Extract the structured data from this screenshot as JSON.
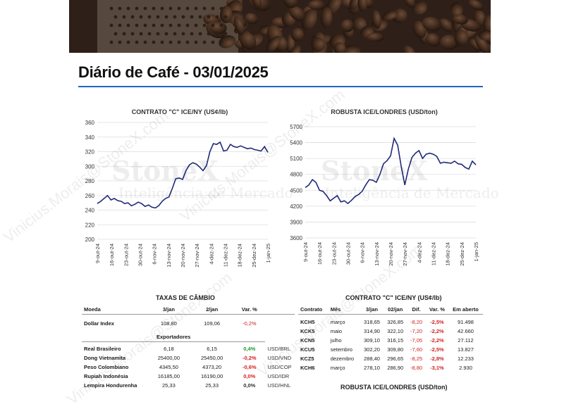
{
  "header": {
    "title": "Diário de Café - 03/01/2025"
  },
  "watermark": {
    "brand": "StoneX",
    "tagline": "Inteligência de Mercado",
    "email": "Vinicius.Morais@StoneX.com"
  },
  "colors": {
    "accent": "#1e66c9",
    "series": "#1f2a78",
    "positive": "#1a9a2a",
    "negative": "#d21f1f"
  },
  "chart_data": [
    {
      "type": "line",
      "title": "CONTRATO \"C\" ICE/NY (US¢/lb)",
      "ylim": [
        200,
        360
      ],
      "yticks": [
        200,
        220,
        240,
        260,
        280,
        300,
        320,
        340,
        360
      ],
      "xticks": [
        "9-out-24",
        "16-out-24",
        "23-out-24",
        "30-out-24",
        "6-nov-24",
        "13-nov-24",
        "20-nov-24",
        "27-nov-24",
        "4-dez-24",
        "11-dez-24",
        "18-dez-24",
        "25-dez-24",
        "1-jan-25"
      ],
      "grid": true,
      "values": [
        249,
        252,
        256,
        260,
        254,
        256,
        253,
        252,
        249,
        250,
        246,
        248,
        251,
        249,
        245,
        247,
        244,
        243,
        246,
        252,
        256,
        258,
        270,
        283,
        284,
        282,
        294,
        302,
        305,
        303,
        299,
        294,
        301,
        320,
        331,
        330,
        333,
        321,
        322,
        330,
        327,
        326,
        328,
        326,
        324,
        325,
        323,
        322,
        321,
        327,
        319
      ]
    },
    {
      "type": "line",
      "title": "ROBUSTA ICE/LONDRES (USD/ton)",
      "ylim": [
        3600,
        5700
      ],
      "yticks": [
        3600,
        3900,
        4200,
        4500,
        4800,
        5100,
        5400,
        5700
      ],
      "xticks": [
        "9-out-24",
        "16-out-24",
        "23-out-24",
        "30-out-24",
        "6-nov-24",
        "13-nov-24",
        "20-nov-24",
        "27-nov-24",
        "4-dez-24",
        "11-dez-24",
        "18-dez-24",
        "25-dez-24",
        "1-jan-25"
      ],
      "grid": true,
      "values": [
        4550,
        4600,
        4700,
        4650,
        4500,
        4480,
        4400,
        4300,
        4350,
        4400,
        4280,
        4300,
        4250,
        4310,
        4380,
        4420,
        4480,
        4600,
        4700,
        4690,
        4650,
        4800,
        5000,
        5060,
        5150,
        5480,
        5350,
        4950,
        4600,
        4900,
        5120,
        5200,
        5250,
        5100,
        5180,
        5200,
        5180,
        5140,
        5010,
        5030,
        5020,
        5010,
        5050,
        5000,
        4990,
        4930,
        4900,
        5050,
        4980
      ]
    }
  ],
  "fx": {
    "title": "TAXAS DE CÂMBIO",
    "headers": [
      "Moeda",
      "3/jan",
      "2/jan",
      "Var. %"
    ],
    "index_row": {
      "name": "Dollar Index",
      "v1": "108,80",
      "v2": "109,06",
      "var": "-0,2%",
      "sign": "negative"
    },
    "exporters_label": "Exportadores",
    "rows": [
      {
        "name": "Real Brasileiro",
        "v1": "6,18",
        "v2": "6,15",
        "var": "0,4%",
        "pair": "USD/BRL",
        "sign": "positive"
      },
      {
        "name": "Dong Vietnamita",
        "v1": "25400,00",
        "v2": "25450,00",
        "var": "-0,2%",
        "pair": "USD/VND",
        "sign": "negative"
      },
      {
        "name": "Peso Colombiano",
        "v1": "4345,50",
        "v2": "4373,20",
        "var": "-0,6%",
        "pair": "USD/COP",
        "sign": "negative"
      },
      {
        "name": "Rupiah Indonésia",
        "v1": "16185,00",
        "v2": "16190,00",
        "var": "0,0%",
        "pair": "USD/IDR",
        "sign": "negative"
      },
      {
        "name": "Lempira Hondurenha",
        "v1": "25,33",
        "v2": "25,33",
        "var": "0,0%",
        "pair": "USD/HNL",
        "sign": "neutral"
      }
    ]
  },
  "contracts": {
    "title": "CONTRATO \"C\" ICE/NY (US¢/lb)",
    "headers": [
      "Contrato",
      "Mês",
      "3/jan",
      "02/jan",
      "Dif.",
      "Var. %",
      "Em aberto"
    ],
    "rows": [
      {
        "code": "KCH5",
        "month": "março",
        "v1": "318,65",
        "v2": "326,85",
        "dif": "-8,20",
        "var": "-2,5%",
        "open": "91.498"
      },
      {
        "code": "KCK5",
        "month": "maio",
        "v1": "314,90",
        "v2": "322,10",
        "dif": "-7,20",
        "var": "-2,2%",
        "open": "42.660"
      },
      {
        "code": "KCN5",
        "month": "julho",
        "v1": "309,10",
        "v2": "316,15",
        "dif": "-7,05",
        "var": "-2,2%",
        "open": "27.112"
      },
      {
        "code": "KCU5",
        "month": "setembro",
        "v1": "302,20",
        "v2": "309,80",
        "dif": "-7,60",
        "var": "-2,5%",
        "open": "13.827"
      },
      {
        "code": "KCZ5",
        "month": "dezembro",
        "v1": "288,40",
        "v2": "296,65",
        "dif": "-8,25",
        "var": "-2,8%",
        "open": "12.233"
      },
      {
        "code": "KCH6",
        "month": "março",
        "v1": "278,10",
        "v2": "286,90",
        "dif": "-8,80",
        "var": "-3,1%",
        "open": "2.930"
      }
    ]
  },
  "robusta_section": {
    "title": "ROBUSTA ICE/LONDRES (USD/ton)"
  }
}
